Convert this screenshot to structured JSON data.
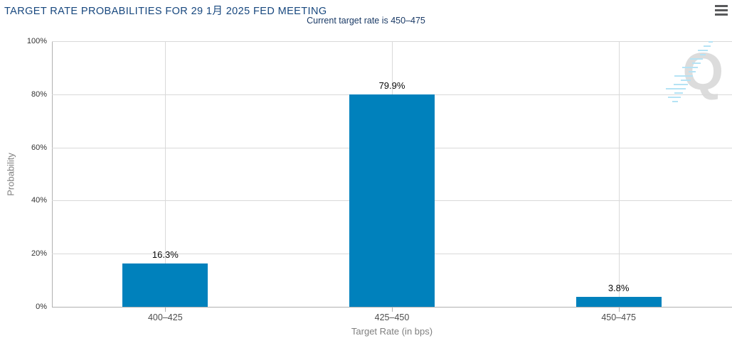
{
  "header": {
    "title": "TARGET RATE PROBABILITIES FOR 29 1月 2025 FED MEETING",
    "subtitle": "Current target rate is 450–475",
    "menu_icon": "hamburger-icon"
  },
  "colors": {
    "title_text": "#17477e",
    "subtitle_text": "#1a3a66",
    "bar": "#0081bc",
    "gridline": "#d9d9d9",
    "axis_line": "#b0b0b0",
    "ytick_text": "#333333",
    "category_text": "#4d4d4d",
    "axis_title_text": "#7f7f7f",
    "value_label_text": "#0a0a0a",
    "menu_icon": "#58595b",
    "watermark_letter": "#dcdcdc",
    "watermark_hatch": "#b5e3f5"
  },
  "chart_data": {
    "type": "bar",
    "title": "TARGET RATE PROBABILITIES FOR 29 1月 2025 FED MEETING",
    "subtitle": "Current target rate is 450–475",
    "categories": [
      "400–425",
      "425–450",
      "450–475"
    ],
    "values": [
      16.3,
      79.9,
      3.8
    ],
    "value_labels": [
      "16.3%",
      "79.9%",
      "3.8%"
    ],
    "xlabel": "Target Rate (in bps)",
    "ylabel": "Probability",
    "ylim": [
      0,
      100
    ],
    "yticks": [
      0,
      20,
      40,
      60,
      80,
      100
    ],
    "ytick_labels": [
      "0%",
      "20%",
      "40%",
      "60%",
      "80%",
      "100%"
    ],
    "grid": true,
    "legend": false,
    "bar_color": "#0081bc"
  },
  "watermark": {
    "letter": "Q"
  }
}
